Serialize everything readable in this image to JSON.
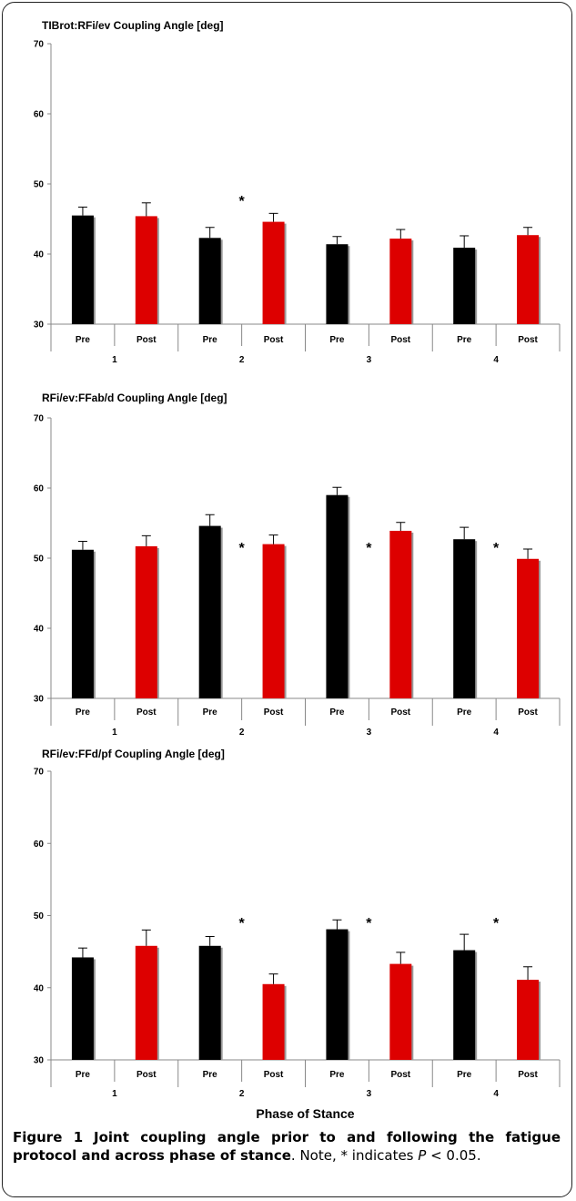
{
  "chart_data": [
    {
      "type": "bar",
      "title": "TIBrot:RFi/ev Coupling Angle [deg]",
      "ylim": [
        30,
        70
      ],
      "yticks": [
        30,
        40,
        50,
        60,
        70
      ],
      "groups": [
        "1",
        "2",
        "3",
        "4"
      ],
      "categories": [
        "Pre",
        "Post",
        "Pre",
        "Post",
        "Pre",
        "Post",
        "Pre",
        "Post"
      ],
      "values": [
        45.5,
        45.4,
        42.3,
        44.6,
        41.4,
        42.2,
        40.9,
        42.7
      ],
      "errors": [
        1.2,
        1.9,
        1.5,
        1.2,
        1.1,
        1.3,
        1.7,
        1.1
      ],
      "colors": [
        "#000000",
        "#dd0000",
        "#000000",
        "#dd0000",
        "#000000",
        "#dd0000",
        "#000000",
        "#dd0000"
      ],
      "significance": [
        {
          "group": "2",
          "label": "*"
        }
      ]
    },
    {
      "type": "bar",
      "title": "RFi/ev:FFab/d Coupling Angle [deg]",
      "ylim": [
        30,
        70
      ],
      "yticks": [
        30,
        40,
        50,
        60,
        70
      ],
      "groups": [
        "1",
        "2",
        "3",
        "4"
      ],
      "categories": [
        "Pre",
        "Post",
        "Pre",
        "Post",
        "Pre",
        "Post",
        "Pre",
        "Post"
      ],
      "values": [
        51.2,
        51.7,
        54.6,
        52.0,
        59.0,
        53.9,
        52.7,
        49.9
      ],
      "errors": [
        1.2,
        1.5,
        1.6,
        1.3,
        1.1,
        1.2,
        1.7,
        1.4
      ],
      "colors": [
        "#000000",
        "#dd0000",
        "#000000",
        "#dd0000",
        "#000000",
        "#dd0000",
        "#000000",
        "#dd0000"
      ],
      "significance": [
        {
          "group": "2",
          "label": "*"
        },
        {
          "group": "3",
          "label": "*"
        },
        {
          "group": "4",
          "label": "*"
        }
      ]
    },
    {
      "type": "bar",
      "title": "RFi/ev:FFd/pf Coupling Angle [deg]",
      "xlabel": "Phase of Stance",
      "ylim": [
        30,
        70
      ],
      "yticks": [
        30,
        40,
        50,
        60,
        70
      ],
      "groups": [
        "1",
        "2",
        "3",
        "4"
      ],
      "categories": [
        "Pre",
        "Post",
        "Pre",
        "Post",
        "Pre",
        "Post",
        "Pre",
        "Post"
      ],
      "values": [
        44.2,
        45.8,
        45.8,
        40.5,
        48.1,
        43.3,
        45.2,
        41.1
      ],
      "errors": [
        1.3,
        2.2,
        1.3,
        1.4,
        1.3,
        1.6,
        2.2,
        1.8
      ],
      "colors": [
        "#000000",
        "#dd0000",
        "#000000",
        "#dd0000",
        "#000000",
        "#dd0000",
        "#000000",
        "#dd0000"
      ],
      "significance": [
        {
          "group": "2",
          "label": "*"
        },
        {
          "group": "3",
          "label": "*"
        },
        {
          "group": "4",
          "label": "*"
        }
      ]
    }
  ],
  "caption": {
    "label": "Figure 1",
    "title": "Joint coupling angle prior to and following the fatigue protocol and across phase of stance",
    "note": ". Note, * indicates ",
    "p_symbol": "P",
    "p_rest": " < 0.05."
  }
}
